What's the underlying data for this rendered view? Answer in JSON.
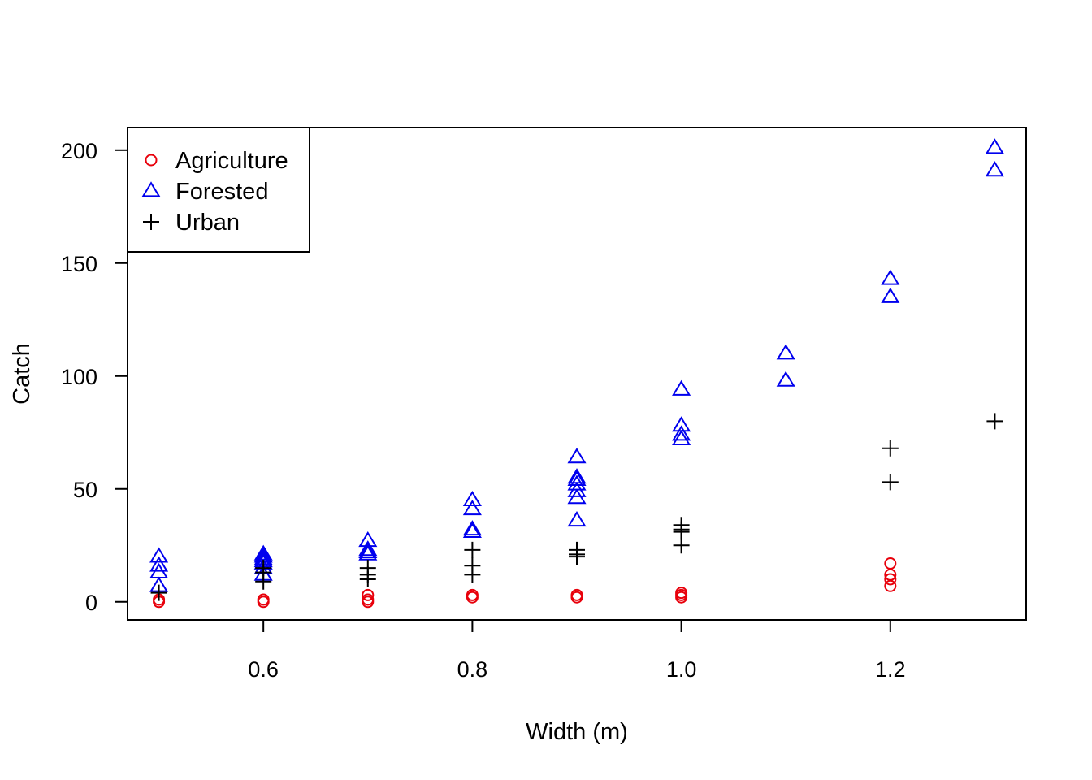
{
  "chart_data": {
    "type": "scatter",
    "xlabel": "Width (m)",
    "ylabel": "Catch",
    "xlim": [
      0.47,
      1.33
    ],
    "ylim": [
      -8,
      210
    ],
    "x_ticks": [
      0.6,
      0.8,
      1.0,
      1.2
    ],
    "x_tick_labels": [
      "0.6",
      "0.8",
      "1.0",
      "1.2"
    ],
    "y_ticks": [
      0,
      50,
      100,
      150,
      200
    ],
    "y_tick_labels": [
      "0",
      "50",
      "100",
      "150",
      "200"
    ],
    "grid": false,
    "legend_position": "top-left",
    "series": [
      {
        "name": "Agriculture",
        "marker": "circle",
        "color": "#e8000b",
        "points": [
          [
            0.5,
            0
          ],
          [
            0.5,
            1
          ],
          [
            0.6,
            0
          ],
          [
            0.6,
            1
          ],
          [
            0.7,
            0
          ],
          [
            0.7,
            1
          ],
          [
            0.7,
            3
          ],
          [
            0.8,
            2
          ],
          [
            0.8,
            3
          ],
          [
            0.9,
            2
          ],
          [
            0.9,
            3
          ],
          [
            1.0,
            2
          ],
          [
            1.0,
            3
          ],
          [
            1.0,
            4
          ],
          [
            1.2,
            7
          ],
          [
            1.2,
            10
          ],
          [
            1.2,
            12
          ],
          [
            1.2,
            17
          ]
        ]
      },
      {
        "name": "Forested",
        "marker": "triangle",
        "color": "#0000ee",
        "points": [
          [
            0.5,
            7
          ],
          [
            0.5,
            13
          ],
          [
            0.5,
            16
          ],
          [
            0.5,
            20
          ],
          [
            0.6,
            12
          ],
          [
            0.6,
            15
          ],
          [
            0.6,
            17
          ],
          [
            0.6,
            18
          ],
          [
            0.6,
            19
          ],
          [
            0.6,
            20
          ],
          [
            0.6,
            21
          ],
          [
            0.7,
            21
          ],
          [
            0.7,
            22
          ],
          [
            0.7,
            23
          ],
          [
            0.7,
            27
          ],
          [
            0.8,
            31
          ],
          [
            0.8,
            32
          ],
          [
            0.8,
            41
          ],
          [
            0.8,
            45
          ],
          [
            0.9,
            36
          ],
          [
            0.9,
            46
          ],
          [
            0.9,
            49
          ],
          [
            0.9,
            52
          ],
          [
            0.9,
            54
          ],
          [
            0.9,
            55
          ],
          [
            0.9,
            64
          ],
          [
            1.0,
            72
          ],
          [
            1.0,
            74
          ],
          [
            1.0,
            78
          ],
          [
            1.0,
            94
          ],
          [
            1.1,
            98
          ],
          [
            1.1,
            110
          ],
          [
            1.2,
            135
          ],
          [
            1.2,
            143
          ],
          [
            1.3,
            191
          ],
          [
            1.3,
            201
          ]
        ]
      },
      {
        "name": "Urban",
        "marker": "plus",
        "color": "#000000",
        "points": [
          [
            0.5,
            4
          ],
          [
            0.6,
            9
          ],
          [
            0.6,
            13
          ],
          [
            0.6,
            15
          ],
          [
            0.7,
            10
          ],
          [
            0.7,
            12
          ],
          [
            0.7,
            15
          ],
          [
            0.8,
            12
          ],
          [
            0.8,
            16
          ],
          [
            0.8,
            23
          ],
          [
            0.9,
            20
          ],
          [
            0.9,
            21
          ],
          [
            0.9,
            23
          ],
          [
            1.0,
            25
          ],
          [
            1.0,
            31
          ],
          [
            1.0,
            32
          ],
          [
            1.0,
            34
          ],
          [
            1.2,
            53
          ],
          [
            1.2,
            68
          ],
          [
            1.3,
            80
          ]
        ]
      }
    ]
  }
}
